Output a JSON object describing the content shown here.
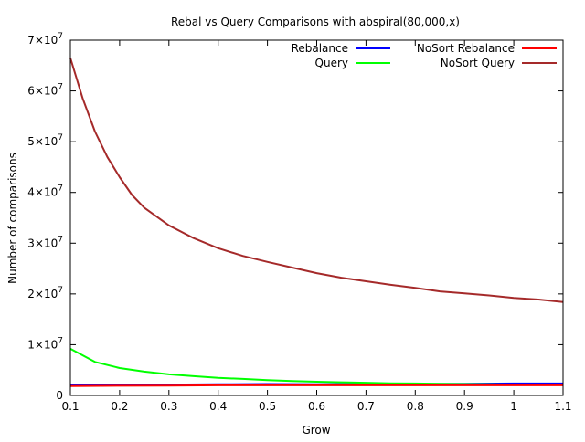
{
  "chart_data": {
    "type": "line",
    "title": "Rebal vs Query Comparisons with abspiral(80,000,x)",
    "xlabel": "Grow",
    "ylabel": "Number of comparisons",
    "xlim": [
      0.1,
      1.1
    ],
    "ylim": [
      0,
      70000000
    ],
    "grid": false,
    "legend_position": "top-right",
    "x_ticks": [
      {
        "value": 0.1,
        "label": "0.1"
      },
      {
        "value": 0.2,
        "label": "0.2"
      },
      {
        "value": 0.3,
        "label": "0.3"
      },
      {
        "value": 0.4,
        "label": "0.4"
      },
      {
        "value": 0.5,
        "label": "0.5"
      },
      {
        "value": 0.6,
        "label": "0.6"
      },
      {
        "value": 0.7,
        "label": "0.7"
      },
      {
        "value": 0.8,
        "label": "0.8"
      },
      {
        "value": 0.9,
        "label": "0.9"
      },
      {
        "value": 1.0,
        "label": "1"
      },
      {
        "value": 1.1,
        "label": "1.1"
      }
    ],
    "y_ticks": [
      {
        "value": 0,
        "label": "0",
        "mant": "",
        "exp": ""
      },
      {
        "value": 10000000,
        "label": "1×10^7",
        "mant": "1×10",
        "exp": "7"
      },
      {
        "value": 20000000,
        "label": "2×10^7",
        "mant": "2×10",
        "exp": "7"
      },
      {
        "value": 30000000,
        "label": "3×10^7",
        "mant": "3×10",
        "exp": "7"
      },
      {
        "value": 40000000,
        "label": "4×10^7",
        "mant": "4×10",
        "exp": "7"
      },
      {
        "value": 50000000,
        "label": "5×10^7",
        "mant": "5×10",
        "exp": "7"
      },
      {
        "value": 60000000,
        "label": "6×10^7",
        "mant": "6×10",
        "exp": "7"
      },
      {
        "value": 70000000,
        "label": "7×10^7",
        "mant": "7×10",
        "exp": "7"
      }
    ],
    "series": [
      {
        "name": "Rebalance",
        "color": "#0000ff",
        "x": [
          0.1,
          0.2,
          0.3,
          0.4,
          0.5,
          0.6,
          0.7,
          0.8,
          0.9,
          1.0,
          1.1
        ],
        "y": [
          2100000,
          2050000,
          2150000,
          2200000,
          2250000,
          2200000,
          2250000,
          2250000,
          2300000,
          2350000,
          2350000
        ]
      },
      {
        "name": "Query",
        "color": "#00ff00",
        "x": [
          0.1,
          0.15,
          0.2,
          0.25,
          0.3,
          0.35,
          0.4,
          0.45,
          0.5,
          0.55,
          0.6,
          0.65,
          0.7,
          0.75,
          0.8,
          0.85,
          0.9,
          0.95,
          1.0,
          1.05,
          1.1
        ],
        "y": [
          9200000,
          6600000,
          5400000,
          4700000,
          4150000,
          3800000,
          3450000,
          3250000,
          3000000,
          2850000,
          2700000,
          2600000,
          2500000,
          2400000,
          2350000,
          2300000,
          2250000,
          2200000,
          2150000,
          2100000,
          2100000
        ]
      },
      {
        "name": "NoSort Rebalance",
        "color": "#ff0000",
        "x": [
          0.1,
          0.2,
          0.3,
          0.4,
          0.5,
          0.6,
          0.7,
          0.8,
          0.9,
          1.0,
          1.1
        ],
        "y": [
          1850000,
          1900000,
          1950000,
          2000000,
          2000000,
          2000000,
          2000000,
          2000000,
          2000000,
          2000000,
          2000000
        ]
      },
      {
        "name": "NoSort Query",
        "color": "#a52a2a",
        "x": [
          0.1,
          0.125,
          0.15,
          0.175,
          0.2,
          0.225,
          0.25,
          0.3,
          0.35,
          0.4,
          0.45,
          0.5,
          0.55,
          0.6,
          0.65,
          0.7,
          0.75,
          0.8,
          0.85,
          0.9,
          0.95,
          1.0,
          1.05,
          1.1
        ],
        "y": [
          66500000,
          58500000,
          52000000,
          47000000,
          43000000,
          39500000,
          37000000,
          33500000,
          31000000,
          29000000,
          27500000,
          26300000,
          25200000,
          24100000,
          23200000,
          22500000,
          21800000,
          21200000,
          20500000,
          20100000,
          19700000,
          19200000,
          18900000,
          18400000
        ]
      }
    ]
  }
}
